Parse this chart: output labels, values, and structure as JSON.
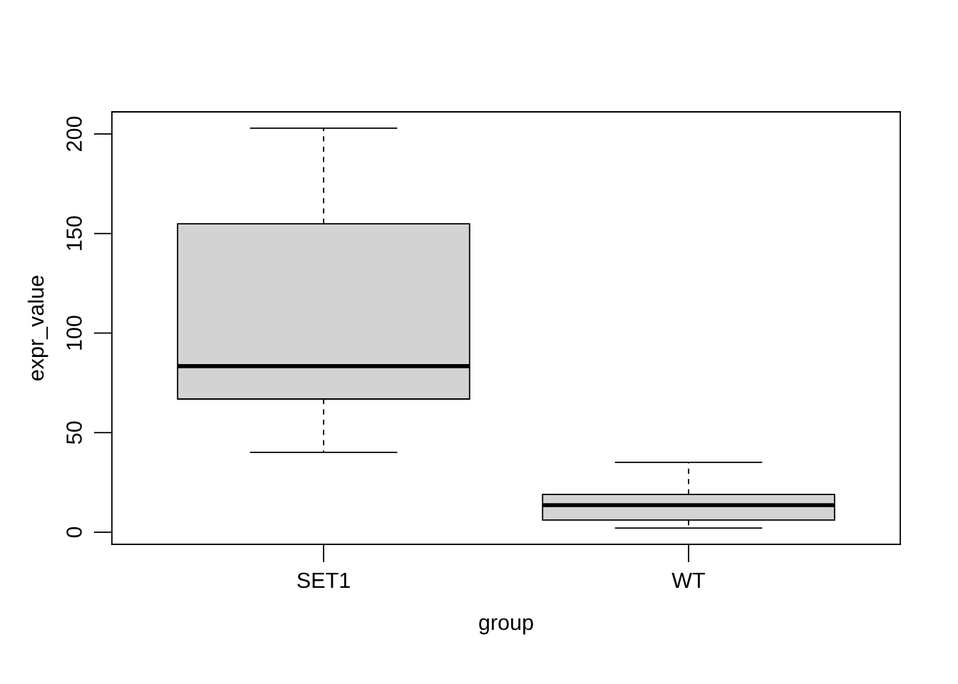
{
  "chart_data": {
    "type": "box",
    "xlabel": "group",
    "ylabel": "expr_value",
    "categories": [
      "SET1",
      "WT"
    ],
    "boxes": [
      {
        "low": 40.1,
        "q1": 66.9,
        "median": 83.4,
        "q3": 154.9,
        "high": 202.9
      },
      {
        "low": 2.1,
        "q1": 6.1,
        "median": 13.6,
        "q3": 19.0,
        "high": 35.1
      }
    ],
    "color": "#d3d3d3",
    "ylim": [
      -6.1,
      211.1
    ],
    "yticks": [
      0,
      50,
      100,
      150,
      200
    ]
  }
}
